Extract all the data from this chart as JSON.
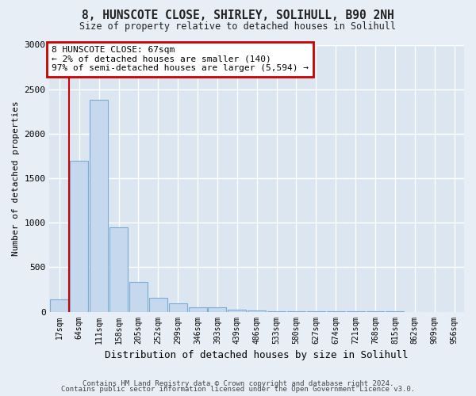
{
  "title": "8, HUNSCOTE CLOSE, SHIRLEY, SOLIHULL, B90 2NH",
  "subtitle": "Size of property relative to detached houses in Solihull",
  "xlabel": "Distribution of detached houses by size in Solihull",
  "ylabel": "Number of detached properties",
  "bar_color": "#c5d8ee",
  "bar_edge_color": "#7badd4",
  "categories": [
    "17sqm",
    "64sqm",
    "111sqm",
    "158sqm",
    "205sqm",
    "252sqm",
    "299sqm",
    "346sqm",
    "393sqm",
    "439sqm",
    "486sqm",
    "533sqm",
    "580sqm",
    "627sqm",
    "674sqm",
    "721sqm",
    "768sqm",
    "815sqm",
    "862sqm",
    "909sqm",
    "956sqm"
  ],
  "values": [
    140,
    1700,
    2380,
    950,
    330,
    155,
    95,
    45,
    45,
    25,
    18,
    8,
    5,
    3,
    2,
    1,
    1,
    1,
    0,
    0,
    0
  ],
  "ylim": [
    0,
    3000
  ],
  "yticks": [
    0,
    500,
    1000,
    1500,
    2000,
    2500,
    3000
  ],
  "annotation_text": "8 HUNSCOTE CLOSE: 67sqm\n← 2% of detached houses are smaller (140)\n97% of semi-detached houses are larger (5,594) →",
  "annotation_box_color": "#ffffff",
  "annotation_box_edge": "#cc0000",
  "property_line_color": "#cc0000",
  "footer_line1": "Contains HM Land Registry data © Crown copyright and database right 2024.",
  "footer_line2": "Contains public sector information licensed under the Open Government Licence v3.0.",
  "background_color": "#e8eef6",
  "plot_background": "#dce6f0",
  "grid_color": "#ffffff"
}
